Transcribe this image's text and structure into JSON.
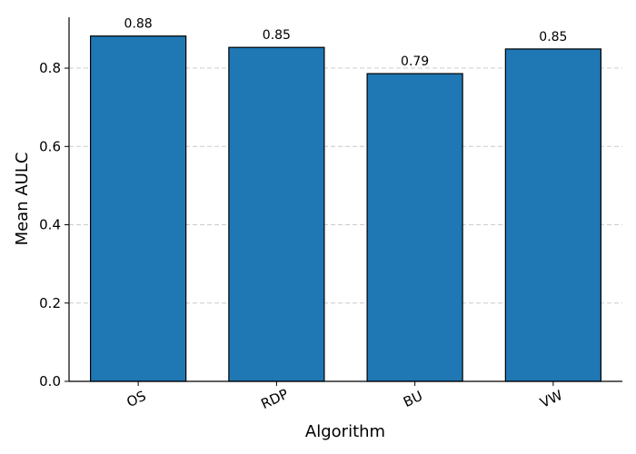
{
  "chart_data": {
    "type": "bar",
    "title": "",
    "xlabel": "Algorithm",
    "ylabel": "Mean AULC",
    "categories": [
      "OS",
      "RDP",
      "BU",
      "VW"
    ],
    "values": [
      0.882,
      0.853,
      0.786,
      0.849
    ],
    "data_labels": [
      "0.88",
      "0.85",
      "0.79",
      "0.85"
    ],
    "ylim": [
      0,
      0.93
    ],
    "yticks": [
      0.0,
      0.2,
      0.4,
      0.6,
      0.8
    ],
    "ytick_labels": [
      "0.0",
      "0.2",
      "0.4",
      "0.6",
      "0.8"
    ],
    "grid": "y-axis dashed",
    "bar_color": "#1f77b4",
    "edge_color": "#000000",
    "spines": "left and bottom only",
    "xtick_rotation_deg": 25
  }
}
